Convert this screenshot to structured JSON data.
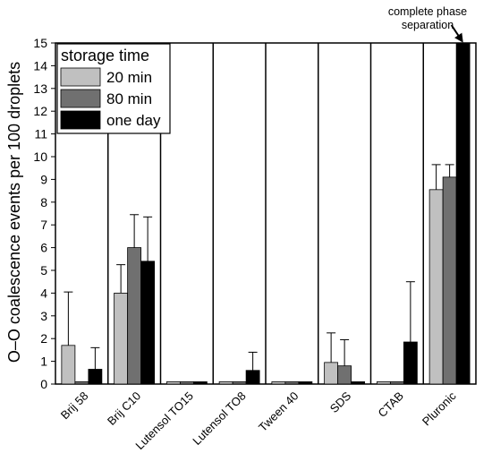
{
  "chart_data": {
    "type": "bar",
    "title": "",
    "xlabel": "",
    "ylabel": "O–O coalescence events per 100 droplets",
    "ylim": [
      0,
      15
    ],
    "yticks": [
      0,
      1,
      2,
      3,
      4,
      5,
      6,
      7,
      8,
      9,
      10,
      11,
      12,
      13,
      14,
      15
    ],
    "grid": false,
    "legend": {
      "title": "storage time",
      "placement": "top-left"
    },
    "categories": [
      "Brij 58",
      "Brij C10",
      "Lutensol TO15",
      "Lutensol TO8",
      "Tween 40",
      "SDS",
      "CTAB",
      "Pluronic"
    ],
    "series": [
      {
        "name": "20 min",
        "color": "#c0c0c0",
        "values": [
          1.7,
          4.0,
          0.1,
          0.1,
          0.1,
          0.95,
          0.1,
          8.55
        ],
        "errors": [
          2.35,
          1.25,
          0,
          0,
          0,
          1.3,
          0,
          1.1
        ]
      },
      {
        "name": "80 min",
        "color": "#707070",
        "values": [
          0.1,
          6.0,
          0.1,
          0.1,
          0.1,
          0.8,
          0.1,
          9.1
        ],
        "errors": [
          0,
          1.45,
          0,
          0,
          0,
          1.15,
          0,
          0.55
        ]
      },
      {
        "name": "one day",
        "color": "#000000",
        "values": [
          0.65,
          5.4,
          0.1,
          0.6,
          0.1,
          0.1,
          1.85,
          15
        ],
        "errors": [
          0.95,
          1.95,
          0,
          0.8,
          0,
          0,
          2.65,
          0
        ]
      }
    ],
    "annotations": [
      {
        "text_lines": [
          "complete phase",
          "separation"
        ],
        "category": "Pluronic",
        "series": "one day",
        "y": 15
      }
    ]
  }
}
